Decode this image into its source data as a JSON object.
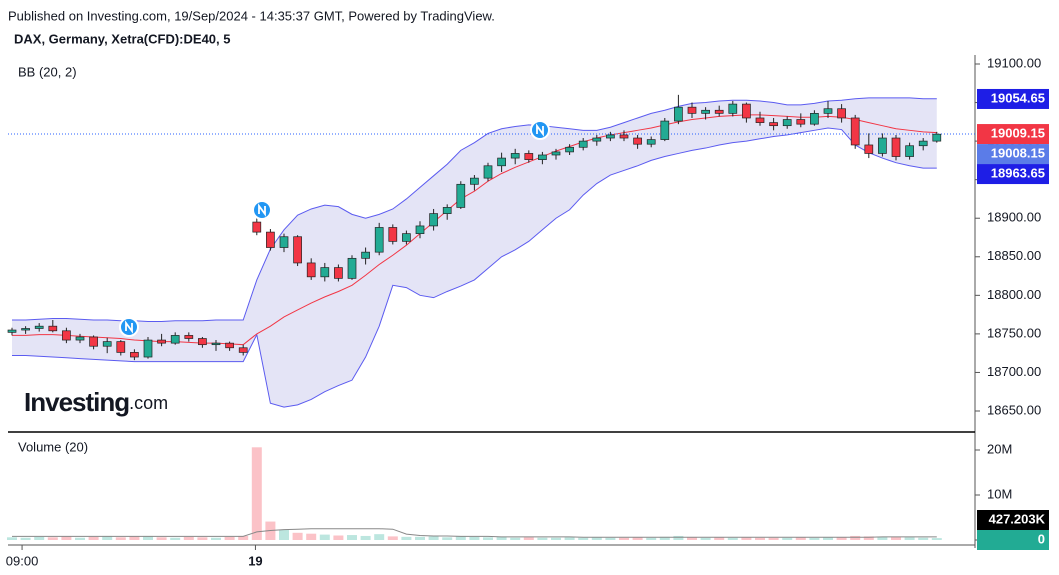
{
  "header": {
    "published": "Published on Investing.com, 19/Sep/2024 - 14:35:37 GMT, Powered by TradingView.",
    "symbol": "DAX, Germany, Xetra(CFD):DE40, 5",
    "logo": "Investing",
    "logo_suffix": ".com"
  },
  "chart_data": {
    "type": "candlestick",
    "price_panel_label": "BB (20, 2)",
    "volume_panel_label": "Volume (20)",
    "up_color": "#22ab94",
    "down_color": "#f23645",
    "band_color": "#5b5bf0",
    "band_fill": "#e4e4f6",
    "ma_color": "#f23645",
    "candles": [
      [
        18752,
        18758,
        18748,
        18755
      ],
      [
        18755,
        18760,
        18750,
        18757
      ],
      [
        18757,
        18764,
        18753,
        18760
      ],
      [
        18760,
        18768,
        18752,
        18754
      ],
      [
        18754,
        18758,
        18738,
        18742
      ],
      [
        18742,
        18750,
        18738,
        18746
      ],
      [
        18746,
        18748,
        18730,
        18734
      ],
      [
        18734,
        18745,
        18725,
        18740
      ],
      [
        18740,
        18742,
        18722,
        18726
      ],
      [
        18726,
        18730,
        18716,
        18720
      ],
      [
        18720,
        18746,
        18718,
        18742
      ],
      [
        18742,
        18750,
        18734,
        18738
      ],
      [
        18738,
        18752,
        18736,
        18748
      ],
      [
        18748,
        18752,
        18740,
        18744
      ],
      [
        18744,
        18746,
        18732,
        18736
      ],
      [
        18736,
        18742,
        18728,
        18738
      ],
      [
        18738,
        18740,
        18728,
        18732
      ],
      [
        18732,
        18736,
        18722,
        18726
      ],
      [
        18895,
        18900,
        18878,
        18882
      ],
      [
        18882,
        18886,
        18858,
        18862
      ],
      [
        18862,
        18880,
        18856,
        18876
      ],
      [
        18876,
        18878,
        18838,
        18842
      ],
      [
        18842,
        18848,
        18820,
        18824
      ],
      [
        18824,
        18842,
        18818,
        18836
      ],
      [
        18836,
        18840,
        18818,
        18822
      ],
      [
        18822,
        18852,
        18820,
        18848
      ],
      [
        18848,
        18862,
        18840,
        18856
      ],
      [
        18856,
        18894,
        18852,
        18888
      ],
      [
        18888,
        18892,
        18866,
        18870
      ],
      [
        18870,
        18884,
        18866,
        18880
      ],
      [
        18880,
        18896,
        18874,
        18890
      ],
      [
        18890,
        18912,
        18884,
        18906
      ],
      [
        18906,
        18918,
        18898,
        18914
      ],
      [
        18914,
        18948,
        18912,
        18944
      ],
      [
        18944,
        18956,
        18936,
        18952
      ],
      [
        18952,
        18972,
        18948,
        18968
      ],
      [
        18968,
        18985,
        18960,
        18978
      ],
      [
        18978,
        18990,
        18970,
        18984
      ],
      [
        18984,
        18988,
        18972,
        18976
      ],
      [
        18976,
        18986,
        18970,
        18982
      ],
      [
        18982,
        18990,
        18976,
        18986
      ],
      [
        18986,
        18996,
        18982,
        18992
      ],
      [
        18992,
        19004,
        18988,
        19000
      ],
      [
        19000,
        19008,
        18994,
        19004
      ],
      [
        19004,
        19012,
        19000,
        19008
      ],
      [
        19008,
        19014,
        19000,
        19004
      ],
      [
        19004,
        19008,
        18990,
        18996
      ],
      [
        18996,
        19006,
        18992,
        19002
      ],
      [
        19002,
        19030,
        19000,
        19026
      ],
      [
        19026,
        19060,
        19022,
        19044
      ],
      [
        19044,
        19050,
        19030,
        19036
      ],
      [
        19036,
        19044,
        19028,
        19040
      ],
      [
        19040,
        19046,
        19032,
        19036
      ],
      [
        19036,
        19052,
        19032,
        19048
      ],
      [
        19048,
        19050,
        19024,
        19030
      ],
      [
        19030,
        19038,
        19020,
        19024
      ],
      [
        19024,
        19030,
        19014,
        19020
      ],
      [
        19020,
        19032,
        19016,
        19028
      ],
      [
        19028,
        19036,
        19018,
        19022
      ],
      [
        19022,
        19040,
        19020,
        19036
      ],
      [
        19036,
        19052,
        19030,
        19042
      ],
      [
        19042,
        19048,
        19024,
        19030
      ],
      [
        19030,
        19034,
        18990,
        18995
      ],
      [
        18995,
        19010,
        18978,
        18984
      ],
      [
        18984,
        19010,
        18980,
        19004
      ],
      [
        19004,
        19008,
        18975,
        18980
      ],
      [
        18980,
        18998,
        18976,
        18994
      ],
      [
        18994,
        19004,
        18988,
        19000
      ],
      [
        19000,
        19012,
        18998,
        19009
      ]
    ],
    "bb_upper": [
      18768,
      18768,
      18769,
      18770,
      18770,
      18769,
      18768,
      18768,
      18767,
      18767,
      18766,
      18766,
      18767,
      18767,
      18767,
      18768,
      18768,
      18768,
      18820,
      18860,
      18885,
      18904,
      18912,
      18917,
      18915,
      18905,
      18900,
      18905,
      18912,
      18925,
      18940,
      18955,
      18970,
      18988,
      18998,
      19010,
      19016,
      19019,
      19021,
      19020,
      19018,
      19016,
      19014,
      19014,
      19018,
      19024,
      19030,
      19036,
      19040,
      19045,
      19049,
      19050,
      19052,
      19053,
      19053,
      19052,
      19050,
      19047,
      19047,
      19049,
      19052,
      19053,
      19055,
      19056,
      19056,
      19056,
      19056,
      19055,
      19055
    ],
    "bb_middle": [
      18748,
      18748,
      18749,
      18749,
      18748,
      18747,
      18746,
      18745,
      18744,
      18742,
      18741,
      18740,
      18740,
      18739,
      18738,
      18738,
      18737,
      18736,
      18750,
      18760,
      18772,
      18781,
      18790,
      18798,
      18805,
      18813,
      18826,
      18840,
      18852,
      18865,
      18880,
      18895,
      18910,
      18925,
      18935,
      18948,
      18958,
      18966,
      18973,
      18980,
      18987,
      18993,
      18999,
      19004,
      19008,
      19011,
      19014,
      19017,
      19021,
      19025,
      19028,
      19030,
      19032,
      19033,
      19034,
      19034,
      19033,
      19032,
      19031,
      19031,
      19032,
      19031,
      19028,
      19024,
      19020,
      19016,
      19014,
      19012,
      19011
    ],
    "bb_lower": [
      18722,
      18722,
      18721,
      18720,
      18719,
      18718,
      18717,
      18716,
      18715,
      18714,
      18714,
      18714,
      18714,
      18714,
      18714,
      18714,
      18714,
      18714,
      18749,
      18660,
      18655,
      18658,
      18665,
      18675,
      18683,
      18690,
      18720,
      18760,
      18813,
      18810,
      18800,
      18797,
      18805,
      18812,
      18820,
      18835,
      18850,
      18859,
      18870,
      18885,
      18900,
      18911,
      18930,
      18945,
      18956,
      18962,
      18968,
      18975,
      18980,
      18984,
      18988,
      18991,
      18995,
      18998,
      19000,
      19003,
      19006,
      19008,
      19011,
      19014,
      19017,
      19015,
      18995,
      18985,
      18978,
      18972,
      18968,
      18965,
      18965
    ],
    "volume": [
      0.6,
      0.5,
      0.7,
      0.6,
      0.8,
      0.5,
      0.7,
      0.9,
      0.6,
      0.8,
      0.9,
      0.6,
      0.5,
      0.7,
      0.6,
      0.5,
      0.7,
      0.9,
      20.6,
      4.1,
      2.3,
      1.6,
      1.4,
      1.2,
      1.0,
      1.1,
      0.9,
      1.3,
      0.8,
      0.7,
      0.7,
      0.8,
      0.6,
      0.9,
      0.7,
      0.6,
      0.7,
      0.5,
      0.6,
      0.5,
      0.5,
      0.6,
      0.5,
      0.6,
      0.5,
      0.5,
      0.6,
      0.5,
      0.7,
      0.9,
      0.6,
      0.5,
      0.6,
      0.5,
      0.6,
      0.5,
      0.5,
      0.5,
      0.6,
      0.5,
      0.6,
      0.6,
      0.9,
      0.8,
      0.7,
      0.7,
      0.6,
      0.5,
      0.427203
    ],
    "volume_ma": [
      0.8,
      0.8,
      0.8,
      0.8,
      0.8,
      0.8,
      0.8,
      0.8,
      0.8,
      0.8,
      0.8,
      0.8,
      0.8,
      0.8,
      0.8,
      0.8,
      0.8,
      0.8,
      1.8,
      2.1,
      2.3,
      2.4,
      2.5,
      2.5,
      2.5,
      2.5,
      2.5,
      2.5,
      2.4,
      1.3,
      1.0,
      0.9,
      0.9,
      0.8,
      0.8,
      0.8,
      0.7,
      0.7,
      0.7,
      0.7,
      0.7,
      0.7,
      0.6,
      0.6,
      0.6,
      0.6,
      0.6,
      0.6,
      0.6,
      0.6,
      0.6,
      0.6,
      0.6,
      0.6,
      0.6,
      0.6,
      0.6,
      0.6,
      0.6,
      0.6,
      0.6,
      0.6,
      0.6,
      0.6,
      0.7,
      0.7,
      0.7,
      0.7,
      0.7
    ],
    "ylim": [
      18625,
      19125
    ],
    "yticks": [
      {
        "value": 18650,
        "label": "18650.00"
      },
      {
        "value": 18700,
        "label": "18700.00"
      },
      {
        "value": 18750,
        "label": "18750.00"
      },
      {
        "value": 18800,
        "label": "18800.00"
      },
      {
        "value": 18850,
        "label": "18850.00"
      },
      {
        "value": 18900,
        "label": "18900.00"
      },
      {
        "value": 18950,
        "label": "18950.00"
      },
      {
        "value": 19000,
        "label": "19000.00"
      },
      {
        "value": 19050,
        "label": "19050.00"
      },
      {
        "value": 19100,
        "label": "19100.00"
      }
    ],
    "y2lim": [
      0,
      22.2
    ],
    "y2ticks": [
      {
        "value": 0,
        "label": "0"
      },
      {
        "value": 10,
        "label": "10M"
      },
      {
        "value": 20,
        "label": "20M"
      }
    ],
    "xticks": [
      {
        "value": 0.74,
        "label": "09:00"
      },
      {
        "value": 17.9,
        "label": "19"
      }
    ],
    "last_price": 19009.15,
    "price_tags": [
      {
        "value": 19054.65,
        "color": "#1e1ee6"
      },
      {
        "value": 19009.15,
        "color": "#f23645"
      },
      {
        "value": 19008.15,
        "color": "#5b7ce8"
      },
      {
        "value": 18963.65,
        "color": "#1e1ee6"
      }
    ],
    "volume_tags": [
      {
        "value": 0.427203,
        "label": "427.203K",
        "color": "#000000"
      },
      {
        "value": 0,
        "label": "0",
        "color": "#22ab94"
      }
    ]
  }
}
